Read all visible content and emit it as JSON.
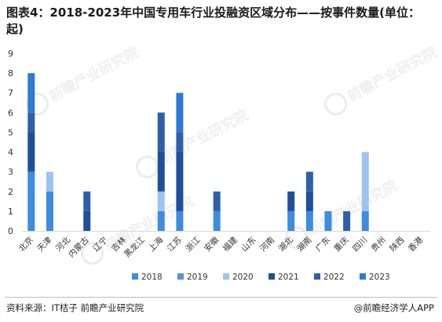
{
  "title": "图表4：2018-2023年中国专用车行业投融资区域分布——按事件数量(单位：起)",
  "footer": {
    "source": "资料来源：IT桔子 前瞻产业研究院",
    "brand": "@前瞻经济学人APP"
  },
  "watermark": "前瞻产业研究院",
  "chart_data": {
    "type": "bar",
    "stacked": true,
    "title": "图表4：2018-2023年中国专用车行业投融资区域分布——按事件数量(单位：起)",
    "categories": [
      "北京",
      "天津",
      "河北",
      "内蒙古",
      "辽宁",
      "吉林",
      "黑龙江",
      "上海",
      "江苏",
      "浙江",
      "安徽",
      "福建",
      "山东",
      "河南",
      "湖北",
      "湖南",
      "广东",
      "重庆",
      "四川",
      "贵州",
      "陕西",
      "香港"
    ],
    "ylim": [
      0,
      9
    ],
    "yticks": [
      0,
      1,
      2,
      3,
      4,
      5,
      6,
      7,
      8,
      9
    ],
    "grid": false,
    "legend_position": "bottom",
    "series": [
      {
        "name": "2018",
        "color": "#3d8ce0",
        "values": [
          3,
          2,
          0,
          0,
          0,
          0,
          0,
          1,
          1,
          0,
          1,
          0,
          0,
          0,
          1,
          1,
          1,
          0,
          1,
          0,
          0,
          0
        ]
      },
      {
        "name": "2019",
        "color": "#5b8fd6",
        "values": [
          0,
          0,
          0,
          0,
          0,
          0,
          0,
          0,
          0,
          0,
          0,
          0,
          0,
          0,
          0,
          0,
          0,
          0,
          0,
          0,
          0,
          0
        ]
      },
      {
        "name": "2020",
        "color": "#9cc4ef",
        "values": [
          0,
          1,
          0,
          0,
          0,
          0,
          0,
          1,
          0,
          0,
          0,
          0,
          0,
          0,
          0,
          0,
          0,
          0,
          3,
          0,
          0,
          0
        ]
      },
      {
        "name": "2021",
        "color": "#1f4e9c",
        "values": [
          2,
          0,
          0,
          1,
          0,
          0,
          0,
          2,
          3,
          0,
          0,
          0,
          0,
          0,
          1,
          1,
          0,
          0,
          0,
          0,
          0,
          0
        ]
      },
      {
        "name": "2022",
        "color": "#2f5faa",
        "values": [
          1,
          0,
          0,
          1,
          0,
          0,
          0,
          2,
          1,
          0,
          1,
          0,
          0,
          0,
          0,
          1,
          0,
          1,
          0,
          0,
          0,
          0
        ]
      },
      {
        "name": "2023",
        "color": "#2e7bd6",
        "values": [
          2,
          0,
          0,
          0,
          0,
          0,
          0,
          0,
          2,
          0,
          0,
          0,
          0,
          0,
          0,
          0,
          0,
          0,
          0,
          0,
          0,
          0
        ]
      }
    ]
  }
}
